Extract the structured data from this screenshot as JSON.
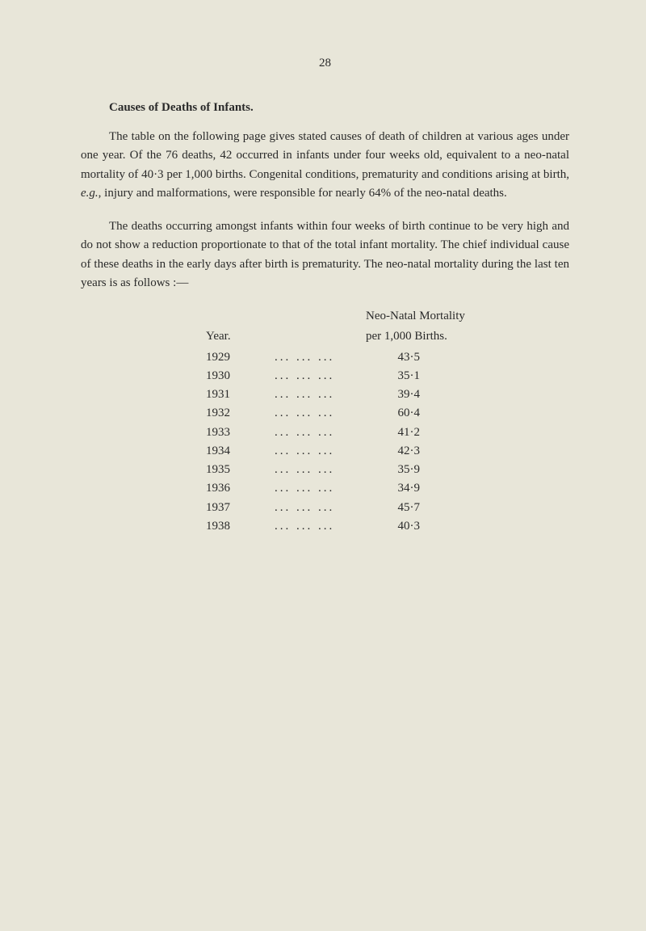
{
  "page_number": "28",
  "section_title": "Causes of Deaths of Infants.",
  "paragraph1_part1": "The table on the following page gives stated causes of death of children at various ages under one year. Of the 76 deaths, 42 occurred in infants under four weeks old, equivalent to a neo-natal mortality of 40·3 per 1,000 births. Congenital conditions, prematurity and conditions arising at birth, ",
  "paragraph1_italic": "e.g.",
  "paragraph1_part2": ", injury and malformations, were responsible for nearly 64% of the neo-natal deaths.",
  "paragraph2": "The deaths occurring amongst infants within four weeks of birth continue to be very high and do not show a reduction proportionate to that of the total infant mortality. The chief individual cause of these deaths in the early days after birth is prematurity. The neo-natal mortality during the last ten years is as follows :—",
  "table": {
    "header_year": "Year.",
    "header_mortality_line1": "Neo-Natal Mortality",
    "header_mortality_line2": "per 1,000 Births.",
    "dots": "...   ...   ...",
    "rows": [
      {
        "year": "1929",
        "value": "43·5"
      },
      {
        "year": "1930",
        "value": "35·1"
      },
      {
        "year": "1931",
        "value": "39·4"
      },
      {
        "year": "1932",
        "value": "60·4"
      },
      {
        "year": "1933",
        "value": "41·2"
      },
      {
        "year": "1934",
        "value": "42·3"
      },
      {
        "year": "1935",
        "value": "35·9"
      },
      {
        "year": "1936",
        "value": "34·9"
      },
      {
        "year": "1937",
        "value": "45·7"
      },
      {
        "year": "1938",
        "value": "40·3"
      }
    ]
  }
}
